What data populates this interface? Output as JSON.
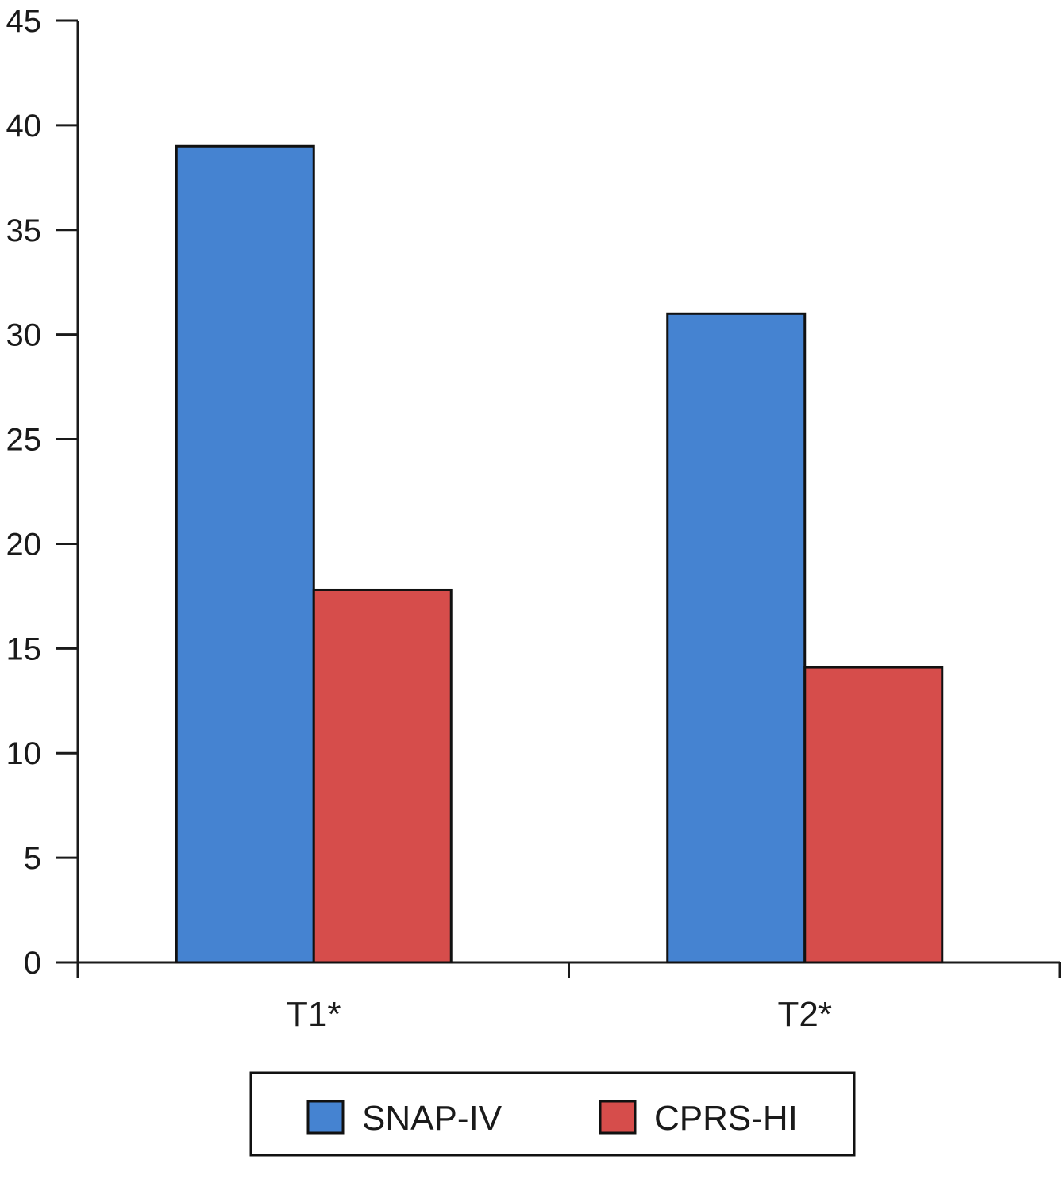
{
  "chart_data": {
    "type": "bar",
    "categories": [
      "T1*",
      "T2*"
    ],
    "series": [
      {
        "name": "SNAP-IV",
        "values": [
          39,
          31
        ],
        "color": "#4583d1"
      },
      {
        "name": "CPRS-HI",
        "values": [
          17.8,
          14.1
        ],
        "color": "#d64d4b"
      }
    ],
    "ylim": [
      0,
      45
    ],
    "yticks": [
      0,
      5,
      10,
      15,
      20,
      25,
      30,
      35,
      40,
      45
    ],
    "title": "",
    "xlabel": "",
    "ylabel": "",
    "grid": false,
    "legend_position": "bottom"
  }
}
